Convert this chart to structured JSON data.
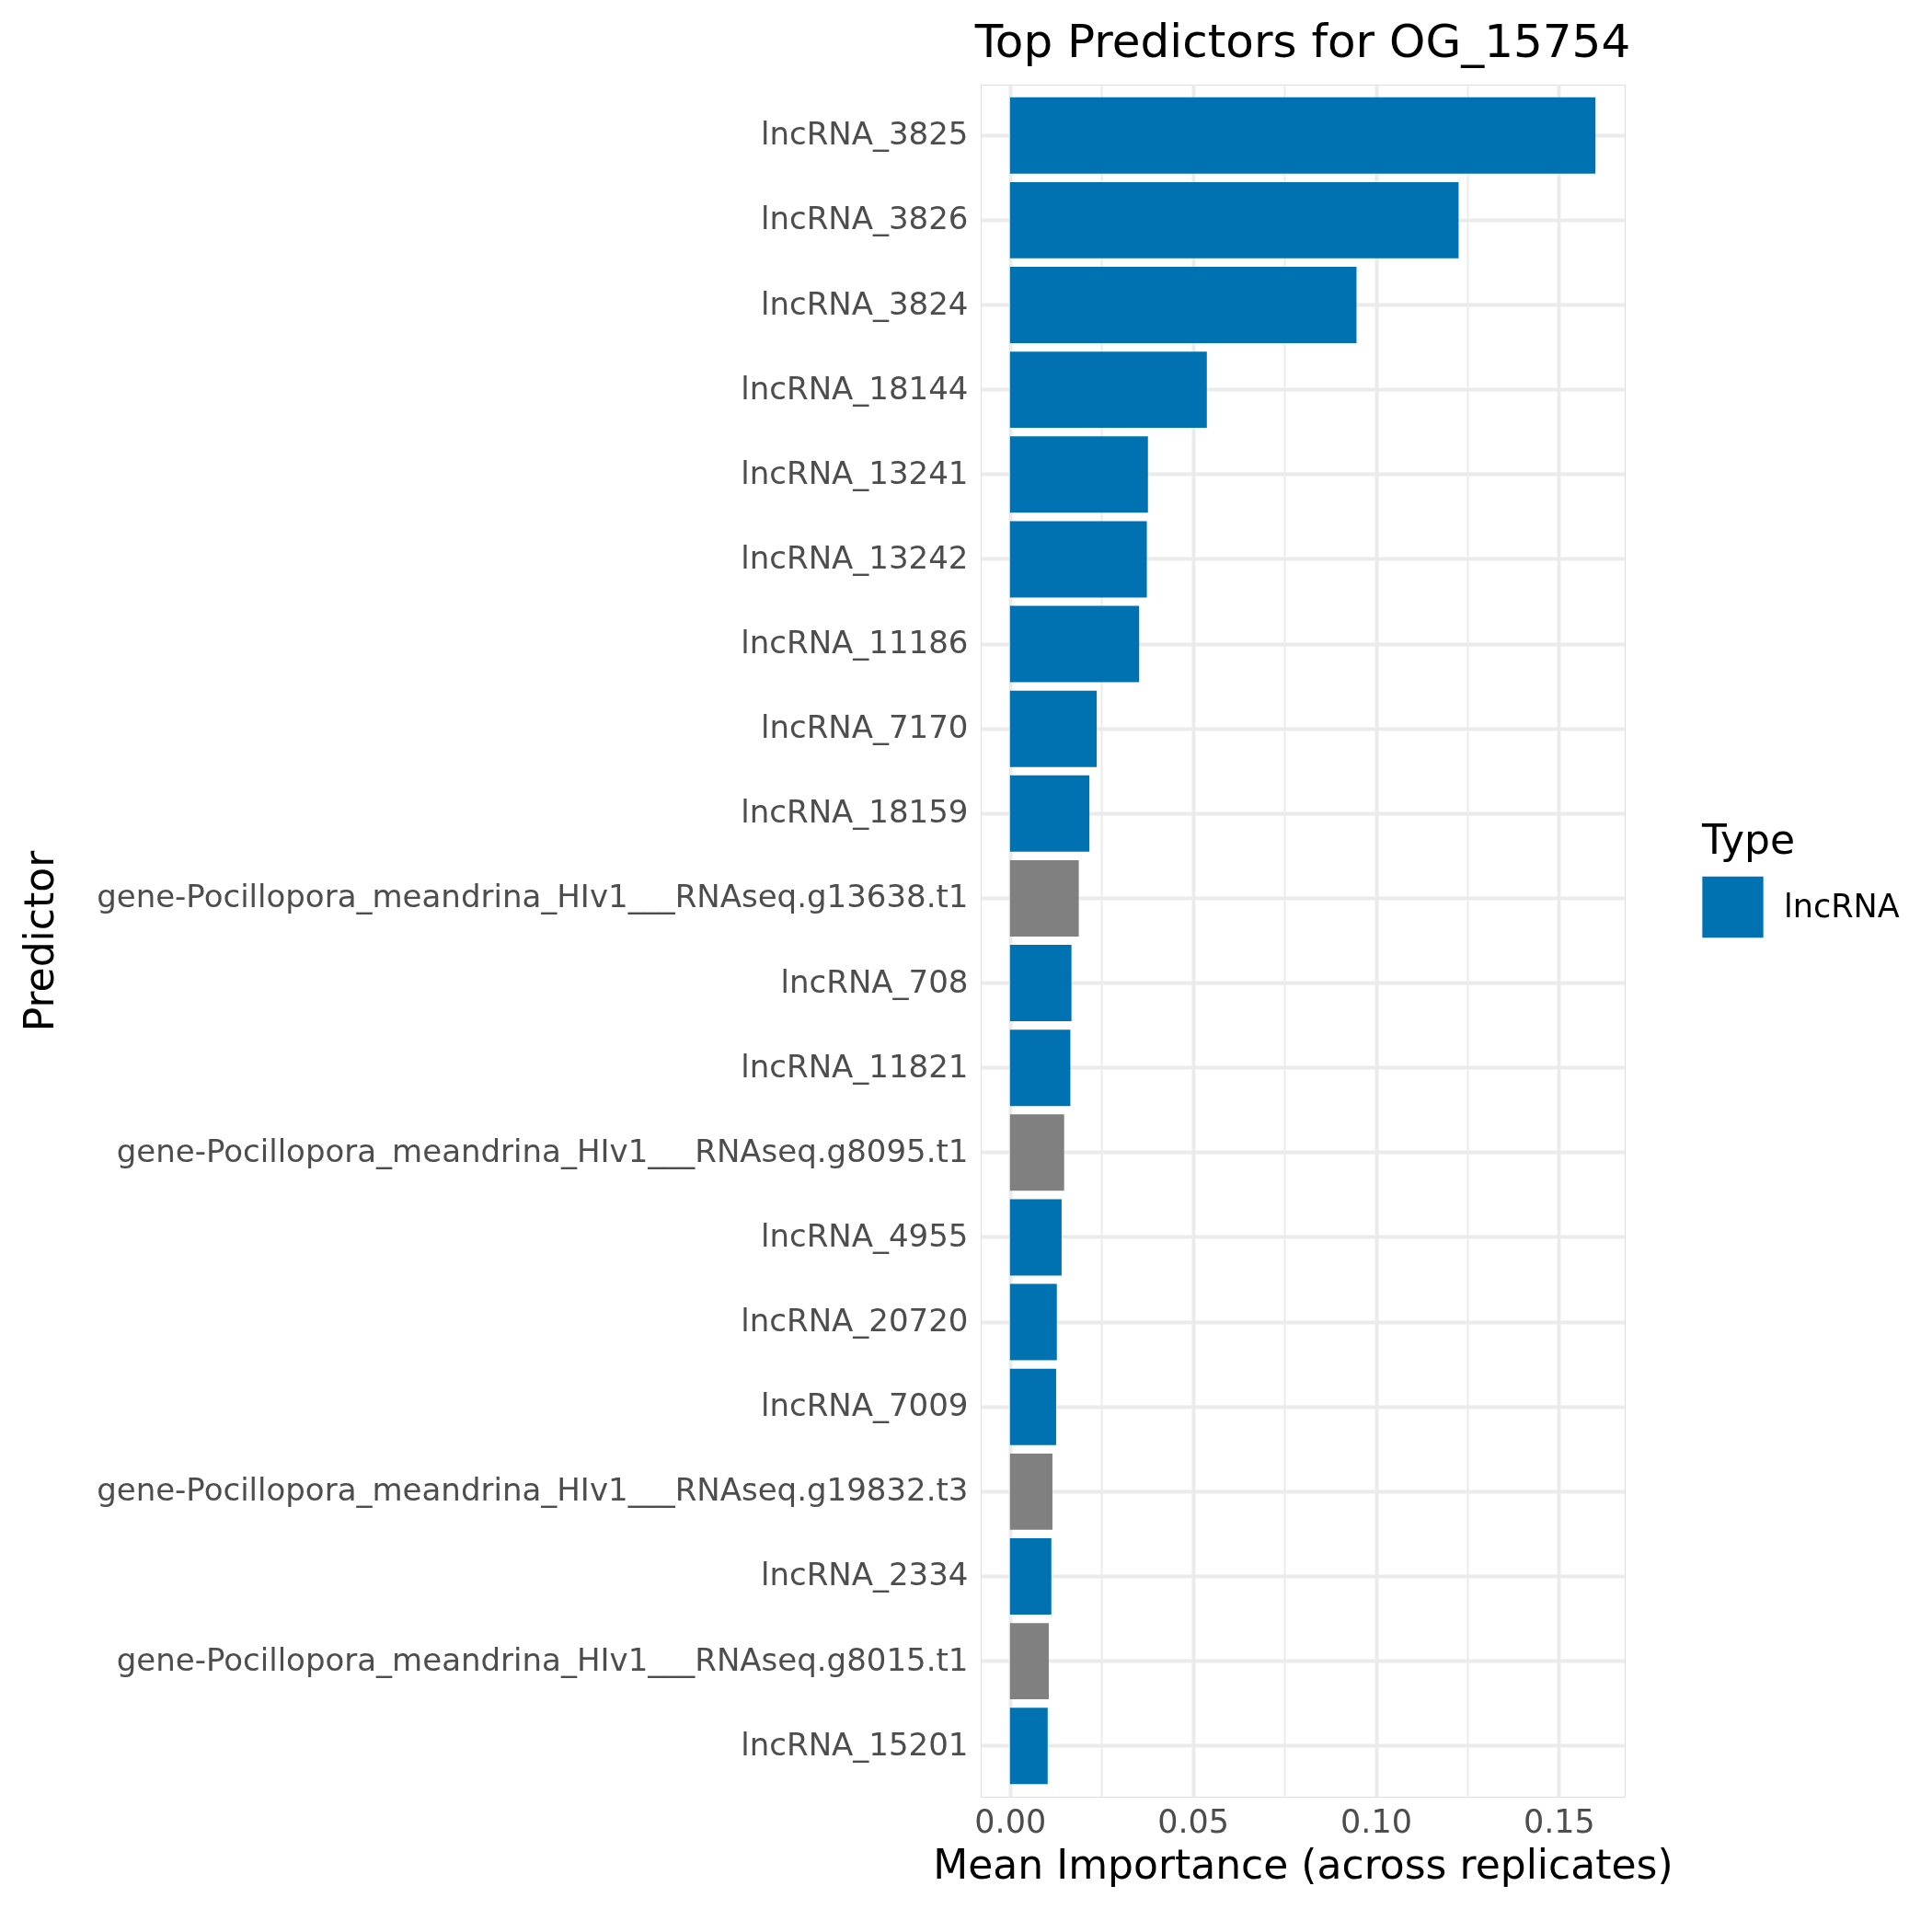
{
  "chart_data": {
    "type": "bar",
    "orientation": "horizontal",
    "title": "Top Predictors for OG_15754",
    "xlabel": "Mean Importance (across replicates)",
    "ylabel": "Predictor",
    "legend_title": "Type",
    "categories": [
      "lncRNA_3825",
      "lncRNA_3826",
      "lncRNA_3824",
      "lncRNA_18144",
      "lncRNA_13241",
      "lncRNA_13242",
      "lncRNA_11186",
      "lncRNA_7170",
      "lncRNA_18159",
      "gene-Pocillopora_meandrina_HIv1___RNAseq.g13638.t1",
      "lncRNA_708",
      "lncRNA_11821",
      "gene-Pocillopora_meandrina_HIv1___RNAseq.g8095.t1",
      "lncRNA_4955",
      "lncRNA_20720",
      "lncRNA_7009",
      "gene-Pocillopora_meandrina_HIv1___RNAseq.g19832.t3",
      "lncRNA_2334",
      "gene-Pocillopora_meandrina_HIv1___RNAseq.g8015.t1",
      "lncRNA_15201"
    ],
    "series": [
      {
        "name": "lncRNA",
        "color": "#0072b2",
        "values": [
          0.16,
          0.1226,
          0.0947,
          0.0538,
          0.0377,
          0.0374,
          0.0353,
          0.0237,
          0.0217,
          null,
          0.0168,
          0.0165,
          null,
          0.0141,
          0.0128,
          0.0126,
          null,
          0.0113,
          null,
          0.0103
        ]
      },
      {
        "color": "#808080",
        "values": [
          null,
          null,
          null,
          null,
          null,
          null,
          null,
          null,
          null,
          0.0188,
          null,
          null,
          0.0148,
          null,
          null,
          null,
          0.0116,
          null,
          0.0106,
          null
        ]
      }
    ],
    "xlim": [
      -0.008,
      0.168
    ],
    "xticks": [
      {
        "value": 0,
        "label": "0.00"
      },
      {
        "value": 0.025,
        "label": null
      },
      {
        "value": 0.05,
        "label": "0.05"
      },
      {
        "value": 0.075,
        "label": null
      },
      {
        "value": 0.1,
        "label": "0.10"
      },
      {
        "value": 0.125,
        "label": null
      },
      {
        "value": 0.15,
        "label": "0.15"
      }
    ],
    "grid": true,
    "legend": "right"
  }
}
